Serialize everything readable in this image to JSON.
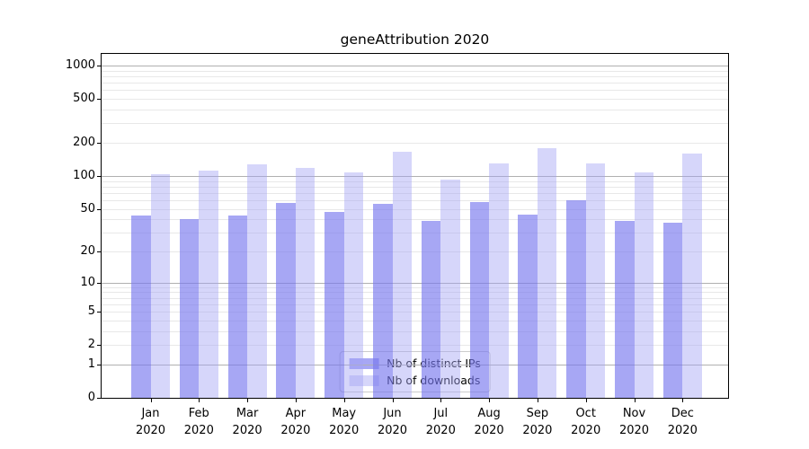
{
  "chart_data": {
    "type": "bar",
    "title": "geneAttribution 2020",
    "categories": [
      "Jan",
      "Feb",
      "Mar",
      "Apr",
      "May",
      "Jun",
      "Jul",
      "Aug",
      "Sep",
      "Oct",
      "Nov",
      "Dec"
    ],
    "year_suffix": "2020",
    "yscale": "log1p",
    "yticks": [
      0,
      1,
      2,
      5,
      10,
      20,
      50,
      100,
      200,
      500,
      1000
    ],
    "ylim": [
      0,
      1280
    ],
    "xlabel": "",
    "ylabel": "",
    "grid": true,
    "legend_position": "lower center",
    "series": [
      {
        "name": "Nb of distinct IPs",
        "color": "rgba(120,120,238,0.65)",
        "values": [
          43,
          40,
          43,
          57,
          47,
          56,
          39,
          58,
          44,
          60,
          39,
          37
        ]
      },
      {
        "name": "Nb of downloads",
        "color": "rgba(164,164,244,0.45)",
        "values": [
          104,
          112,
          128,
          118,
          107,
          167,
          93,
          130,
          179,
          131,
          107,
          161
        ]
      }
    ],
    "colors": {
      "grid_major": "#b0b0b0",
      "grid_minor": "#e8e8e8",
      "spine": "#000000",
      "text": "#000000",
      "legend_border": "#cccccc",
      "legend_bg": "rgba(255,255,255,0.85)"
    }
  }
}
